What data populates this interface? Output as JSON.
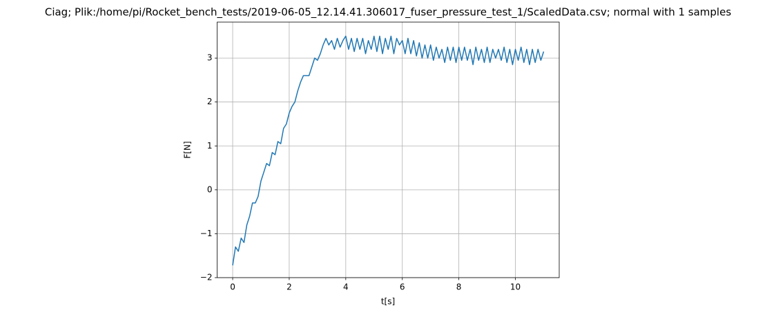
{
  "chart_data": {
    "type": "line",
    "title": "Ciag; Plik:/home/pi/Rocket_bench_tests/2019-06-05_12.14.41.306017_fuser_pressure_test_1/ScaledData.csv; normal with 1 samples",
    "x_label": "t[s]",
    "y_label": "F[N]",
    "xlim": [
      -0.55,
      11.55
    ],
    "ylim": [
      -2,
      3.82
    ],
    "xticks": [
      0,
      2,
      4,
      6,
      8,
      10
    ],
    "yticks": [
      {
        "value": -2,
        "label": "−2"
      },
      {
        "value": -1,
        "label": "−1"
      },
      0,
      1,
      2,
      3
    ],
    "grid": true,
    "series": [
      {
        "color": "#1f77b4",
        "x": [
          0.0,
          0.1,
          0.2,
          0.3,
          0.4,
          0.5,
          0.6,
          0.7,
          0.8,
          0.9,
          1.0,
          1.1,
          1.2,
          1.3,
          1.4,
          1.5,
          1.6,
          1.7,
          1.8,
          1.9,
          2.0,
          2.1,
          2.2,
          2.3,
          2.4,
          2.5,
          2.6,
          2.7,
          2.8,
          2.9,
          3.0,
          3.1,
          3.2,
          3.3,
          3.4,
          3.5,
          3.6,
          3.7,
          3.8,
          3.9,
          4.0,
          4.1,
          4.2,
          4.3,
          4.4,
          4.5,
          4.6,
          4.7,
          4.8,
          4.9,
          5.0,
          5.1,
          5.2,
          5.3,
          5.4,
          5.5,
          5.6,
          5.7,
          5.8,
          5.9,
          6.0,
          6.1,
          6.2,
          6.3,
          6.4,
          6.5,
          6.6,
          6.7,
          6.8,
          6.9,
          7.0,
          7.1,
          7.2,
          7.3,
          7.4,
          7.5,
          7.6,
          7.7,
          7.8,
          7.9,
          8.0,
          8.1,
          8.2,
          8.3,
          8.4,
          8.5,
          8.6,
          8.7,
          8.8,
          8.9,
          9.0,
          9.1,
          9.2,
          9.3,
          9.4,
          9.5,
          9.6,
          9.7,
          9.8,
          9.9,
          10.0,
          10.1,
          10.2,
          10.3,
          10.4,
          10.5,
          10.6,
          10.7,
          10.8,
          10.9,
          11.0
        ],
        "values": [
          -1.72,
          -1.3,
          -1.4,
          -1.1,
          -1.2,
          -0.8,
          -0.6,
          -0.3,
          -0.3,
          -0.15,
          0.2,
          0.4,
          0.6,
          0.55,
          0.85,
          0.8,
          1.1,
          1.05,
          1.4,
          1.5,
          1.75,
          1.9,
          2.0,
          2.25,
          2.45,
          2.6,
          2.6,
          2.6,
          2.8,
          3.0,
          2.95,
          3.1,
          3.3,
          3.45,
          3.3,
          3.4,
          3.2,
          3.45,
          3.25,
          3.4,
          3.5,
          3.2,
          3.45,
          3.15,
          3.45,
          3.2,
          3.45,
          3.1,
          3.4,
          3.2,
          3.5,
          3.15,
          3.5,
          3.1,
          3.45,
          3.2,
          3.5,
          3.1,
          3.45,
          3.3,
          3.4,
          3.1,
          3.45,
          3.1,
          3.4,
          3.05,
          3.35,
          3.0,
          3.3,
          3.0,
          3.3,
          2.95,
          3.25,
          3.0,
          3.2,
          2.9,
          3.25,
          2.95,
          3.25,
          2.9,
          3.25,
          2.95,
          3.25,
          2.95,
          3.2,
          2.85,
          3.25,
          2.95,
          3.2,
          2.9,
          3.25,
          2.9,
          3.2,
          3.0,
          3.2,
          2.95,
          3.25,
          2.9,
          3.2,
          2.85,
          3.2,
          2.95,
          3.25,
          2.9,
          3.2,
          2.85,
          3.2,
          2.9,
          3.2,
          2.95,
          3.15
        ]
      }
    ]
  }
}
